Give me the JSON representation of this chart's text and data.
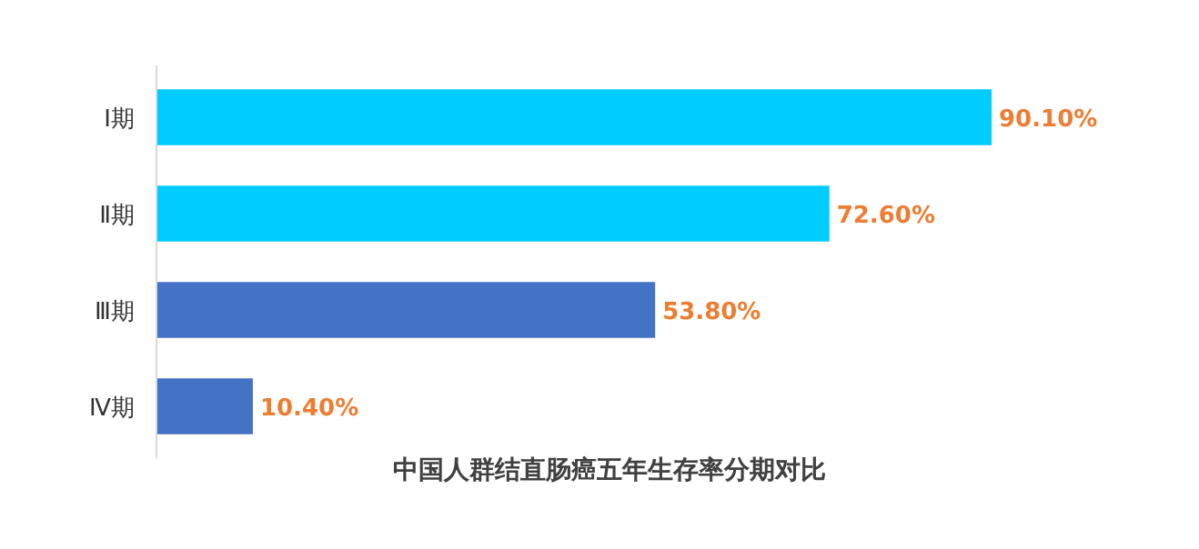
{
  "chart_data": {
    "type": "bar",
    "orientation": "horizontal",
    "title": "中国人群结直肠癌五年生存率分期对比",
    "categories": [
      "Ⅰ期",
      "Ⅱ期",
      "Ⅲ期",
      "Ⅳ期"
    ],
    "values": [
      90.1,
      72.6,
      53.8,
      10.4
    ],
    "colors": [
      "#00ccff",
      "#00ccff",
      "#4472c4",
      "#4472c4"
    ],
    "value_labels": [
      "90.10%",
      "72.60%",
      "53.80%",
      "10.40%"
    ]
  }
}
